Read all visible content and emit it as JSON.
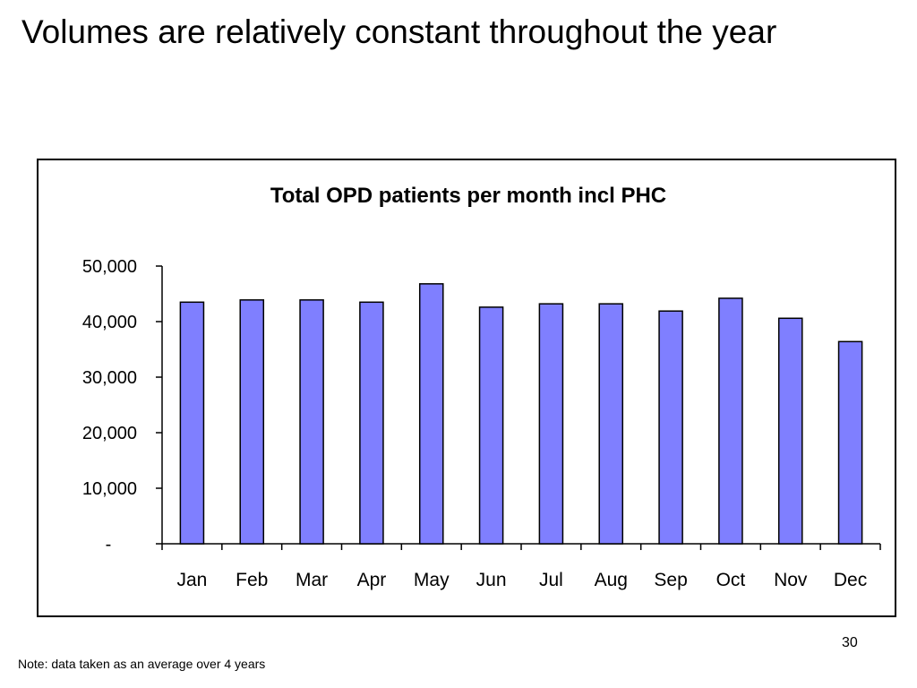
{
  "slide": {
    "title": "Volumes are relatively constant throughout the year",
    "page_number": "30",
    "footnote": "Note: data taken as an average over 4 years"
  },
  "colors": {
    "bar_fill": "#7F7FFF",
    "bar_stroke": "#000000",
    "frame": "#000000"
  },
  "chart_data": {
    "type": "bar",
    "title": "Total OPD patients per month incl PHC",
    "xlabel": "",
    "ylabel": "",
    "categories": [
      "Jan",
      "Feb",
      "Mar",
      "Apr",
      "May",
      "Jun",
      "Jul",
      "Aug",
      "Sep",
      "Oct",
      "Nov",
      "Dec"
    ],
    "values": [
      43500,
      43900,
      43900,
      43500,
      46800,
      42600,
      43200,
      43200,
      41900,
      44200,
      40600,
      36400
    ],
    "ylim": [
      0,
      50000
    ],
    "yticks": [
      {
        "value": 0,
        "label": "-"
      },
      {
        "value": 10000,
        "label": "10,000"
      },
      {
        "value": 20000,
        "label": "20,000"
      },
      {
        "value": 30000,
        "label": "30,000"
      },
      {
        "value": 40000,
        "label": "40,000"
      },
      {
        "value": 50000,
        "label": "50,000"
      }
    ],
    "grid": false,
    "legend": "none"
  }
}
